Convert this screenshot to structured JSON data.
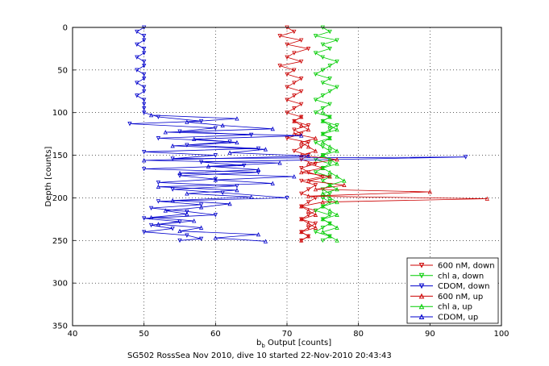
{
  "chart_data": {
    "type": "line",
    "xlabel_main": "b",
    "xlabel_sub": "b",
    "xlabel_rest": " Output [counts]",
    "ylabel": "Depth [counts]",
    "caption": "SG502 RossSea Nov 2010, dive 10 started 22-Nov-2010 20:43:43",
    "xlim": [
      40,
      100
    ],
    "ylim": [
      0,
      350
    ],
    "y_reversed": true,
    "xticks": [
      40,
      50,
      60,
      70,
      80,
      90,
      100
    ],
    "yticks": [
      0,
      50,
      100,
      150,
      200,
      250,
      300,
      350
    ],
    "grid": true,
    "legend_position": "bottom-right",
    "series": [
      {
        "name": "600 nM, down",
        "color": "#cc0000",
        "marker": "triangle-down",
        "points": [
          [
            70,
            0
          ],
          [
            71,
            5
          ],
          [
            69,
            10
          ],
          [
            72,
            15
          ],
          [
            70,
            20
          ],
          [
            73,
            25
          ],
          [
            71,
            30
          ],
          [
            70,
            35
          ],
          [
            72,
            40
          ],
          [
            69,
            45
          ],
          [
            71,
            50
          ],
          [
            70,
            55
          ],
          [
            72,
            60
          ],
          [
            71,
            65
          ],
          [
            70,
            70
          ],
          [
            72,
            75
          ],
          [
            71,
            80
          ],
          [
            70,
            85
          ],
          [
            72,
            90
          ],
          [
            71,
            95
          ],
          [
            70,
            100
          ],
          [
            72,
            105
          ],
          [
            71,
            110
          ],
          [
            73,
            115
          ],
          [
            71,
            120
          ],
          [
            72,
            125
          ],
          [
            70,
            130
          ],
          [
            73,
            135
          ],
          [
            72,
            140
          ],
          [
            71,
            145
          ],
          [
            73,
            150
          ],
          [
            72,
            155
          ],
          [
            74,
            160
          ],
          [
            72,
            165
          ],
          [
            73,
            170
          ],
          [
            75,
            175
          ],
          [
            72,
            180
          ],
          [
            74,
            185
          ],
          [
            73,
            190
          ],
          [
            72,
            195
          ],
          [
            74,
            200
          ],
          [
            73,
            205
          ],
          [
            72,
            210
          ],
          [
            74,
            215
          ],
          [
            73,
            220
          ],
          [
            72,
            225
          ],
          [
            74,
            230
          ],
          [
            73,
            235
          ],
          [
            72,
            240
          ],
          [
            73,
            245
          ],
          [
            72,
            250
          ]
        ]
      },
      {
        "name": "chl a, down",
        "color": "#00cc00",
        "marker": "triangle-down",
        "points": [
          [
            75,
            0
          ],
          [
            76,
            5
          ],
          [
            74,
            10
          ],
          [
            77,
            15
          ],
          [
            75,
            20
          ],
          [
            76,
            25
          ],
          [
            74,
            30
          ],
          [
            75,
            35
          ],
          [
            77,
            40
          ],
          [
            76,
            45
          ],
          [
            75,
            50
          ],
          [
            74,
            55
          ],
          [
            76,
            60
          ],
          [
            75,
            65
          ],
          [
            77,
            70
          ],
          [
            76,
            75
          ],
          [
            75,
            80
          ],
          [
            74,
            85
          ],
          [
            76,
            90
          ],
          [
            75,
            95
          ],
          [
            74,
            100
          ],
          [
            76,
            105
          ],
          [
            75,
            110
          ],
          [
            77,
            115
          ],
          [
            76,
            120
          ],
          [
            75,
            125
          ],
          [
            76,
            130
          ],
          [
            74,
            135
          ],
          [
            75,
            140
          ],
          [
            76,
            145
          ],
          [
            75,
            150
          ],
          [
            74,
            155
          ],
          [
            76,
            160
          ],
          [
            75,
            165
          ],
          [
            74,
            170
          ],
          [
            76,
            175
          ],
          [
            75,
            180
          ],
          [
            76,
            185
          ],
          [
            75,
            190
          ],
          [
            76,
            195
          ],
          [
            75,
            200
          ],
          [
            76,
            205
          ],
          [
            75,
            210
          ],
          [
            74,
            215
          ],
          [
            76,
            220
          ],
          [
            75,
            225
          ],
          [
            76,
            230
          ],
          [
            75,
            235
          ],
          [
            74,
            240
          ],
          [
            76,
            245
          ],
          [
            75,
            250
          ]
        ]
      },
      {
        "name": "CDOM, down",
        "color": "#0000cc",
        "marker": "triangle-down",
        "points": [
          [
            50,
            0
          ],
          [
            49,
            5
          ],
          [
            50,
            10
          ],
          [
            50,
            15
          ],
          [
            49,
            20
          ],
          [
            50,
            25
          ],
          [
            50,
            30
          ],
          [
            49,
            35
          ],
          [
            50,
            40
          ],
          [
            50,
            45
          ],
          [
            49,
            50
          ],
          [
            50,
            55
          ],
          [
            50,
            60
          ],
          [
            49,
            65
          ],
          [
            50,
            70
          ],
          [
            50,
            75
          ],
          [
            49,
            80
          ],
          [
            50,
            85
          ],
          [
            50,
            90
          ],
          [
            50,
            95
          ],
          [
            50,
            100
          ],
          [
            52,
            105
          ],
          [
            58,
            110
          ],
          [
            48,
            113
          ],
          [
            60,
            118
          ],
          [
            55,
            122
          ],
          [
            65,
            126
          ],
          [
            52,
            130
          ],
          [
            62,
            134
          ],
          [
            56,
            138
          ],
          [
            66,
            142
          ],
          [
            50,
            146
          ],
          [
            60,
            150
          ],
          [
            54,
            154
          ],
          [
            95,
            152
          ],
          [
            58,
            158
          ],
          [
            64,
            162
          ],
          [
            50,
            166
          ],
          [
            66,
            170
          ],
          [
            55,
            174
          ],
          [
            60,
            178
          ],
          [
            52,
            182
          ],
          [
            63,
            186
          ],
          [
            54,
            190
          ],
          [
            61,
            194
          ],
          [
            70,
            200
          ],
          [
            52,
            204
          ],
          [
            58,
            208
          ],
          [
            51,
            212
          ],
          [
            56,
            216
          ],
          [
            60,
            220
          ],
          [
            50,
            224
          ],
          [
            55,
            228
          ],
          [
            51,
            232
          ],
          [
            54,
            236
          ],
          [
            50,
            240
          ],
          [
            56,
            244
          ],
          [
            58,
            248
          ],
          [
            55,
            250
          ]
        ]
      },
      {
        "name": "600 nM, up",
        "color": "#cc0000",
        "marker": "triangle-up",
        "points": [
          [
            72,
            250
          ],
          [
            73,
            245
          ],
          [
            72,
            240
          ],
          [
            74,
            235
          ],
          [
            73,
            230
          ],
          [
            72,
            225
          ],
          [
            74,
            220
          ],
          [
            73,
            215
          ],
          [
            72,
            210
          ],
          [
            75,
            205
          ],
          [
            98,
            201
          ],
          [
            73,
            198
          ],
          [
            90,
            193
          ],
          [
            74,
            190
          ],
          [
            78,
            185
          ],
          [
            73,
            180
          ],
          [
            76,
            175
          ],
          [
            72,
            170
          ],
          [
            75,
            165
          ],
          [
            73,
            160
          ],
          [
            77,
            155
          ],
          [
            72,
            150
          ],
          [
            74,
            145
          ],
          [
            73,
            140
          ],
          [
            72,
            135
          ],
          [
            74,
            130
          ],
          [
            71,
            125
          ],
          [
            73,
            120
          ],
          [
            72,
            115
          ],
          [
            71,
            110
          ],
          [
            72,
            105
          ]
        ]
      },
      {
        "name": "chl a, up",
        "color": "#00cc00",
        "marker": "triangle-up",
        "points": [
          [
            77,
            250
          ],
          [
            76,
            245
          ],
          [
            75,
            240
          ],
          [
            77,
            235
          ],
          [
            76,
            230
          ],
          [
            75,
            225
          ],
          [
            77,
            220
          ],
          [
            76,
            215
          ],
          [
            75,
            210
          ],
          [
            77,
            205
          ],
          [
            76,
            200
          ],
          [
            75,
            195
          ],
          [
            77,
            190
          ],
          [
            76,
            185
          ],
          [
            78,
            180
          ],
          [
            77,
            175
          ],
          [
            76,
            170
          ],
          [
            75,
            165
          ],
          [
            77,
            160
          ],
          [
            76,
            155
          ],
          [
            75,
            150
          ],
          [
            77,
            145
          ],
          [
            76,
            140
          ],
          [
            75,
            135
          ],
          [
            76,
            130
          ],
          [
            75,
            125
          ],
          [
            77,
            120
          ],
          [
            76,
            115
          ],
          [
            75,
            110
          ],
          [
            76,
            105
          ],
          [
            75,
            100
          ]
        ]
      },
      {
        "name": "CDOM, up",
        "color": "#0000cc",
        "marker": "triangle-up",
        "points": [
          [
            67,
            251
          ],
          [
            60,
            247
          ],
          [
            66,
            243
          ],
          [
            55,
            239
          ],
          [
            58,
            235
          ],
          [
            52,
            231
          ],
          [
            57,
            227
          ],
          [
            51,
            223
          ],
          [
            56,
            219
          ],
          [
            53,
            215
          ],
          [
            58,
            211
          ],
          [
            62,
            207
          ],
          [
            54,
            203
          ],
          [
            65,
            199
          ],
          [
            56,
            195
          ],
          [
            63,
            191
          ],
          [
            52,
            187
          ],
          [
            68,
            183
          ],
          [
            60,
            179
          ],
          [
            71,
            175
          ],
          [
            55,
            171
          ],
          [
            66,
            167
          ],
          [
            59,
            163
          ],
          [
            69,
            159
          ],
          [
            50,
            156
          ],
          [
            73,
            151
          ],
          [
            62,
            147
          ],
          [
            67,
            143
          ],
          [
            54,
            139
          ],
          [
            63,
            135
          ],
          [
            57,
            131
          ],
          [
            72,
            127
          ],
          [
            53,
            123
          ],
          [
            68,
            119
          ],
          [
            61,
            115
          ],
          [
            56,
            111
          ],
          [
            63,
            107
          ],
          [
            51,
            103
          ]
        ]
      }
    ]
  }
}
